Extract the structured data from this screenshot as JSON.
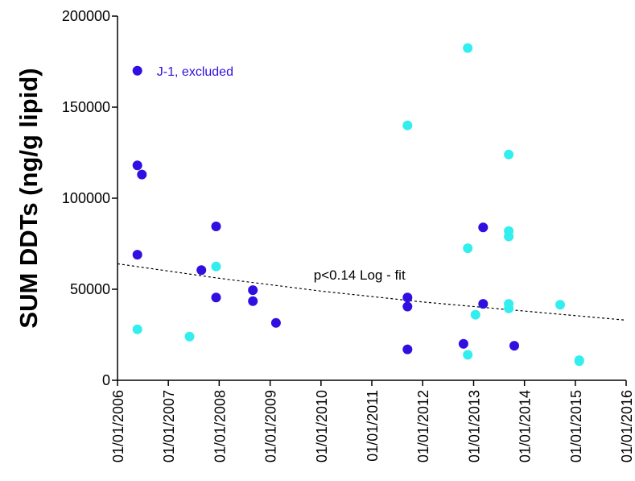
{
  "chart_data": {
    "type": "scatter",
    "title": "",
    "xlabel": "",
    "ylabel": "SUM DDTs (ng/g lipid)",
    "xlim": [
      "01/01/2006",
      "01/01/2016"
    ],
    "ylim": [
      0,
      200000
    ],
    "y_ticks": [
      "0",
      "50000",
      "100000",
      "150000",
      "200000"
    ],
    "x_ticks": [
      "01/01/2006",
      "01/01/2007",
      "01/01/2008",
      "01/01/2009",
      "01/01/2010",
      "01/01/2011",
      "01/01/2012",
      "01/01/2013",
      "01/01/2014",
      "01/01/2015",
      "01/01/2016"
    ],
    "grid": false,
    "legend": "none",
    "series": [
      {
        "color": "#3010e0",
        "points": [
          {
            "x": "2006-05-24",
            "y": 170000
          },
          {
            "x": "2006-05-24",
            "y": 118000
          },
          {
            "x": "2006-06-25",
            "y": 113000
          },
          {
            "x": "2006-05-24",
            "y": 69000
          },
          {
            "x": "2007-08-26",
            "y": 60500
          },
          {
            "x": "2007-12-10",
            "y": 84500
          },
          {
            "x": "2007-12-10",
            "y": 45500
          },
          {
            "x": "2008-08-30",
            "y": 49500
          },
          {
            "x": "2008-08-30",
            "y": 43500
          },
          {
            "x": "2009-02-12",
            "y": 31500
          },
          {
            "x": "2011-09-14",
            "y": 45500
          },
          {
            "x": "2011-09-14",
            "y": 40500
          },
          {
            "x": "2011-09-14",
            "y": 17000
          },
          {
            "x": "2012-10-20",
            "y": 20000
          },
          {
            "x": "2013-03-10",
            "y": 84000
          },
          {
            "x": "2013-03-10",
            "y": 42000
          },
          {
            "x": "2013-10-20",
            "y": 19000
          }
        ]
      },
      {
        "color": "#33eeee",
        "points": [
          {
            "x": "2006-05-24",
            "y": 28000
          },
          {
            "x": "2007-06-02",
            "y": 24000
          },
          {
            "x": "2007-12-10",
            "y": 62500
          },
          {
            "x": "2011-09-14",
            "y": 140000
          },
          {
            "x": "2012-11-20",
            "y": 182500
          },
          {
            "x": "2012-11-20",
            "y": 72500
          },
          {
            "x": "2012-11-20",
            "y": 14000
          },
          {
            "x": "2013-01-14",
            "y": 36000
          },
          {
            "x": "2013-09-10",
            "y": 124000
          },
          {
            "x": "2013-09-10",
            "y": 82000
          },
          {
            "x": "2013-09-10",
            "y": 79000
          },
          {
            "x": "2013-09-10",
            "y": 42000
          },
          {
            "x": "2013-09-10",
            "y": 39500
          },
          {
            "x": "2014-09-14",
            "y": 41500
          },
          {
            "x": "2015-01-29",
            "y": 11000
          },
          {
            "x": "2015-01-29",
            "y": 10500
          }
        ]
      }
    ],
    "fit_line": {
      "style": "dashed",
      "color": "#000000",
      "points": [
        {
          "x": "01/01/2006",
          "y": 64000
        },
        {
          "x": "01/01/2008",
          "y": 56000
        },
        {
          "x": "01/01/2010",
          "y": 49000
        },
        {
          "x": "01/01/2012",
          "y": 43000
        },
        {
          "x": "01/01/2014",
          "y": 38000
        },
        {
          "x": "01/01/2016",
          "y": 33000
        }
      ]
    },
    "annotations": [
      {
        "text": "J-1, excluded",
        "x": "2006-10-10",
        "y": 170000,
        "color": "#3010e0"
      },
      {
        "text": "p<0.14  Log - fit",
        "x": "2009-11-10",
        "y": 58000,
        "color": "#000000"
      }
    ]
  }
}
